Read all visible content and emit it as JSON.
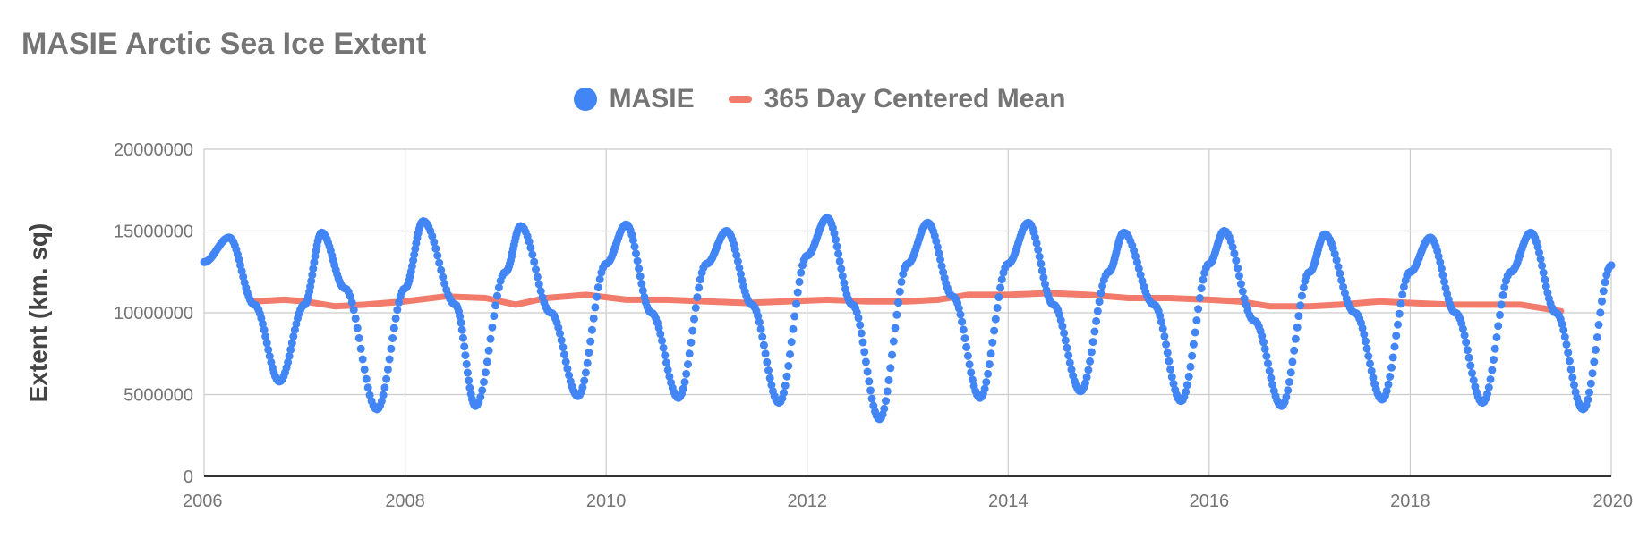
{
  "chart_data": {
    "type": "scatter",
    "title": "MASIE Arctic Sea Ice Extent",
    "xlabel": "",
    "ylabel": "Extent (km. sq)",
    "xlim": [
      2006,
      2020
    ],
    "ylim": [
      0,
      20000000
    ],
    "x_ticks": [
      "2006",
      "2008",
      "2010",
      "2012",
      "2014",
      "2016",
      "2018",
      "2020"
    ],
    "y_ticks": [
      "0",
      "5000000",
      "10000000",
      "15000000",
      "20000000"
    ],
    "grid": true,
    "legend_position": "top",
    "series": [
      {
        "name": "MASIE",
        "style": "points",
        "color": "#4285f4",
        "points": [
          [
            2006.0,
            13100000
          ],
          [
            2006.25,
            14600000
          ],
          [
            2006.5,
            10500000
          ],
          [
            2006.75,
            5800000
          ],
          [
            2007.0,
            10500000
          ],
          [
            2007.17,
            14900000
          ],
          [
            2007.4,
            11500000
          ],
          [
            2007.72,
            4100000
          ],
          [
            2008.0,
            11500000
          ],
          [
            2008.18,
            15600000
          ],
          [
            2008.5,
            10500000
          ],
          [
            2008.7,
            4300000
          ],
          [
            2009.0,
            12500000
          ],
          [
            2009.15,
            15300000
          ],
          [
            2009.45,
            10000000
          ],
          [
            2009.72,
            4900000
          ],
          [
            2010.0,
            13000000
          ],
          [
            2010.2,
            15400000
          ],
          [
            2010.45,
            10000000
          ],
          [
            2010.72,
            4800000
          ],
          [
            2011.0,
            13000000
          ],
          [
            2011.2,
            15000000
          ],
          [
            2011.45,
            10500000
          ],
          [
            2011.72,
            4500000
          ],
          [
            2012.0,
            13500000
          ],
          [
            2012.2,
            15800000
          ],
          [
            2012.45,
            10500000
          ],
          [
            2012.72,
            3500000
          ],
          [
            2013.0,
            13000000
          ],
          [
            2013.2,
            15500000
          ],
          [
            2013.45,
            11000000
          ],
          [
            2013.72,
            4800000
          ],
          [
            2014.0,
            13000000
          ],
          [
            2014.2,
            15500000
          ],
          [
            2014.45,
            10500000
          ],
          [
            2014.72,
            5200000
          ],
          [
            2015.0,
            12500000
          ],
          [
            2015.15,
            14900000
          ],
          [
            2015.45,
            10500000
          ],
          [
            2015.72,
            4600000
          ],
          [
            2016.0,
            13000000
          ],
          [
            2016.15,
            15000000
          ],
          [
            2016.45,
            9500000
          ],
          [
            2016.72,
            4300000
          ],
          [
            2017.0,
            12500000
          ],
          [
            2017.15,
            14800000
          ],
          [
            2017.45,
            10000000
          ],
          [
            2017.72,
            4700000
          ],
          [
            2018.0,
            12500000
          ],
          [
            2018.2,
            14600000
          ],
          [
            2018.45,
            10000000
          ],
          [
            2018.72,
            4500000
          ],
          [
            2019.0,
            12500000
          ],
          [
            2019.2,
            14900000
          ],
          [
            2019.45,
            10000000
          ],
          [
            2019.72,
            4100000
          ],
          [
            2020.0,
            12900000
          ]
        ]
      },
      {
        "name": "365 Day Centered Mean",
        "style": "line",
        "color": "#f27b6b",
        "points": [
          [
            2006.5,
            10700000
          ],
          [
            2006.8,
            10800000
          ],
          [
            2007.0,
            10700000
          ],
          [
            2007.3,
            10400000
          ],
          [
            2007.6,
            10500000
          ],
          [
            2008.0,
            10700000
          ],
          [
            2008.4,
            11000000
          ],
          [
            2008.8,
            10900000
          ],
          [
            2009.1,
            10500000
          ],
          [
            2009.4,
            10900000
          ],
          [
            2009.8,
            11100000
          ],
          [
            2010.2,
            10800000
          ],
          [
            2010.6,
            10800000
          ],
          [
            2011.0,
            10700000
          ],
          [
            2011.4,
            10600000
          ],
          [
            2011.8,
            10700000
          ],
          [
            2012.2,
            10800000
          ],
          [
            2012.6,
            10700000
          ],
          [
            2013.0,
            10700000
          ],
          [
            2013.3,
            10800000
          ],
          [
            2013.6,
            11100000
          ],
          [
            2014.0,
            11100000
          ],
          [
            2014.4,
            11200000
          ],
          [
            2014.8,
            11100000
          ],
          [
            2015.2,
            10900000
          ],
          [
            2015.6,
            10900000
          ],
          [
            2016.0,
            10800000
          ],
          [
            2016.3,
            10700000
          ],
          [
            2016.6,
            10400000
          ],
          [
            2017.0,
            10400000
          ],
          [
            2017.3,
            10500000
          ],
          [
            2017.7,
            10700000
          ],
          [
            2018.0,
            10600000
          ],
          [
            2018.4,
            10500000
          ],
          [
            2018.8,
            10500000
          ],
          [
            2019.1,
            10500000
          ],
          [
            2019.5,
            10100000
          ]
        ]
      }
    ]
  }
}
